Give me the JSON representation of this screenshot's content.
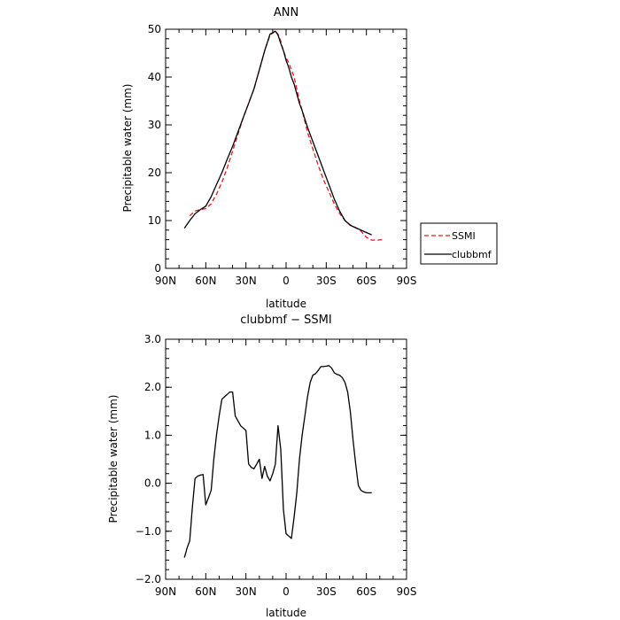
{
  "chart_data": [
    {
      "type": "line",
      "title": "ANN",
      "xlabel": "latitude",
      "ylabel": "Precipitable water (mm)",
      "xlim": [
        -90,
        90
      ],
      "ylim": [
        0,
        50
      ],
      "x_ticks": [
        -90,
        -60,
        -30,
        0,
        30,
        60,
        90
      ],
      "x_tick_labels": [
        "90N",
        "60N",
        "30N",
        "0",
        "30S",
        "60S",
        "90S"
      ],
      "y_ticks": [
        0,
        10,
        20,
        30,
        40,
        50
      ],
      "y_tick_labels": [
        "0",
        "10",
        "20",
        "30",
        "40",
        "50"
      ],
      "legend": {
        "placement": "right",
        "entries": [
          "SSMI",
          "clubbmf"
        ]
      },
      "series": [
        {
          "name": "SSMI",
          "color": "#e41a1c",
          "dash": "dashed",
          "x": [
            -72,
            -68,
            -64,
            -60,
            -56,
            -52,
            -48,
            -44,
            -40,
            -36,
            -32,
            -28,
            -24,
            -20,
            -16,
            -12,
            -8,
            -6,
            -4,
            -2,
            0,
            2,
            4,
            6,
            8,
            10,
            12,
            16,
            20,
            24,
            28,
            32,
            36,
            40,
            44,
            48,
            52,
            56,
            60,
            64,
            68,
            72
          ],
          "y": [
            11,
            12,
            12.3,
            12.5,
            13.5,
            15.5,
            18,
            21,
            24.5,
            28,
            31.5,
            34.5,
            37.5,
            41.5,
            45.5,
            48.8,
            49.6,
            49,
            47.5,
            45.5,
            44,
            43,
            41.5,
            40,
            37.5,
            35,
            33,
            28.5,
            25,
            21.5,
            18.5,
            16,
            13.5,
            11.5,
            10,
            9.1,
            8.5,
            7.8,
            6.5,
            5.9,
            5.9,
            6
          ]
        },
        {
          "name": "clubbmf",
          "color": "#000000",
          "dash": "solid",
          "x": [
            -76,
            -72,
            -68,
            -64,
            -60,
            -56,
            -52,
            -48,
            -44,
            -40,
            -36,
            -32,
            -28,
            -24,
            -20,
            -16,
            -12,
            -8,
            -6,
            -4,
            -2,
            0,
            2,
            4,
            6,
            8,
            10,
            12,
            16,
            20,
            24,
            28,
            32,
            36,
            40,
            44,
            48,
            52,
            56,
            60,
            64
          ],
          "y": [
            8.4,
            10,
            11.4,
            12.3,
            13,
            15,
            17.5,
            20,
            22.8,
            25.5,
            28.5,
            31.5,
            34.5,
            37.5,
            41.5,
            45.5,
            49,
            49.6,
            48.8,
            47,
            45.5,
            43.5,
            42,
            40,
            38.5,
            36.5,
            34.5,
            33,
            29.5,
            26.5,
            23.5,
            20.5,
            17.5,
            14.5,
            12,
            10,
            9,
            8.5,
            8,
            7.5,
            7
          ]
        }
      ]
    },
    {
      "type": "line",
      "title": "clubbmf − SSMI",
      "xlabel": "latitude",
      "ylabel": "Precipitable water (mm)",
      "xlim": [
        -90,
        90
      ],
      "ylim": [
        -2,
        3
      ],
      "x_ticks": [
        -90,
        -60,
        -30,
        0,
        30,
        60,
        90
      ],
      "x_tick_labels": [
        "90N",
        "60N",
        "30N",
        "0",
        "30S",
        "60S",
        "90S"
      ],
      "y_ticks": [
        -2,
        -1,
        0,
        1,
        2,
        3
      ],
      "y_tick_labels": [
        "−2.0",
        "−1.0",
        "0.0",
        "1.0",
        "2.0",
        "3.0"
      ],
      "series": [
        {
          "color": "#000000",
          "dash": "solid",
          "x": [
            -76,
            -74,
            -72,
            -70,
            -68,
            -66,
            -64,
            -62,
            -60,
            -58,
            -56,
            -54,
            -52,
            -50,
            -48,
            -46,
            -44,
            -42,
            -40,
            -38,
            -36,
            -34,
            -32,
            -30,
            -28,
            -26,
            -24,
            -22,
            -20,
            -18,
            -16,
            -14,
            -12,
            -10,
            -8,
            -6,
            -4,
            -2,
            0,
            2,
            4,
            6,
            8,
            10,
            12,
            14,
            16,
            18,
            20,
            22,
            24,
            26,
            28,
            30,
            32,
            34,
            36,
            38,
            40,
            42,
            44,
            46,
            48,
            50,
            52,
            54,
            56,
            58,
            60,
            62,
            64
          ],
          "y": [
            -1.55,
            -1.35,
            -1.2,
            -0.5,
            0.1,
            0.15,
            0.17,
            0.18,
            -0.45,
            -0.3,
            -0.15,
            0.5,
            1.0,
            1.4,
            1.75,
            1.8,
            1.85,
            1.9,
            1.9,
            1.4,
            1.3,
            1.2,
            1.15,
            1.1,
            0.4,
            0.33,
            0.3,
            0.4,
            0.5,
            0.1,
            0.35,
            0.15,
            0.05,
            0.2,
            0.4,
            1.2,
            0.7,
            -0.55,
            -1.05,
            -1.1,
            -1.15,
            -0.7,
            -0.2,
            0.5,
            1.0,
            1.4,
            1.8,
            2.1,
            2.25,
            2.28,
            2.35,
            2.43,
            2.43,
            2.44,
            2.45,
            2.4,
            2.3,
            2.27,
            2.25,
            2.2,
            2.1,
            1.9,
            1.5,
            0.9,
            0.4,
            -0.05,
            -0.15,
            -0.18,
            -0.2,
            -0.2,
            -0.2
          ]
        }
      ]
    }
  ]
}
